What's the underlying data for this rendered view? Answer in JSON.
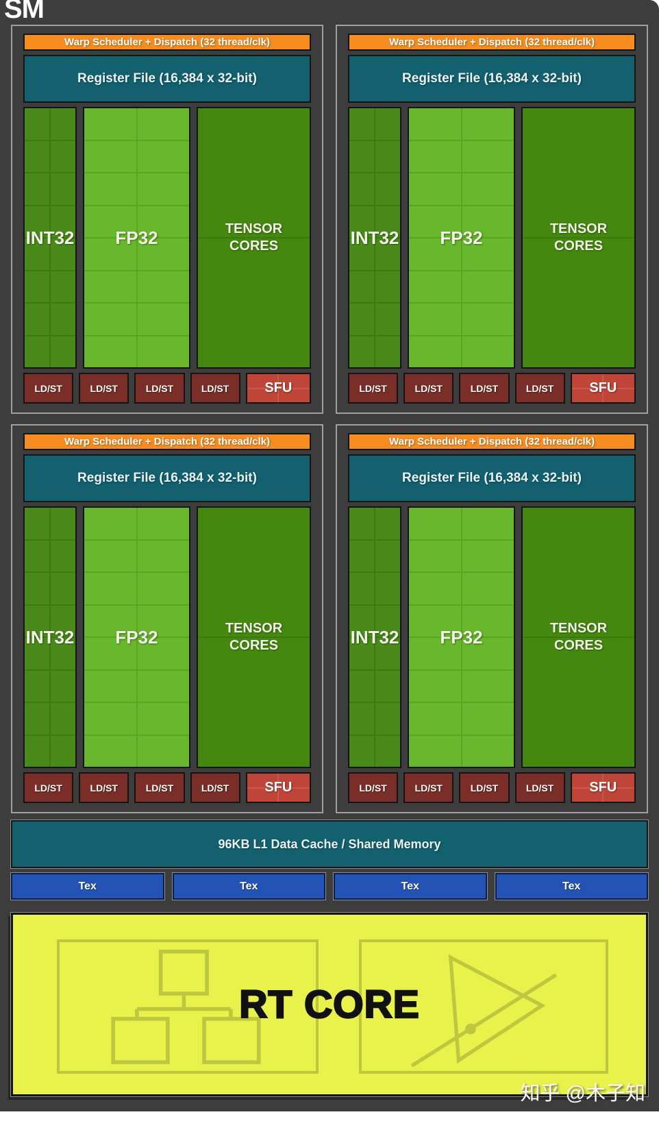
{
  "page": {
    "title": "SM",
    "watermark": "知乎 @木子知"
  },
  "quadrant": {
    "count": 4,
    "warp_label": "Warp Scheduler + Dispatch (32 thread/clk)",
    "register_label": "Register File (16,384 x 32-bit)",
    "cores": {
      "int32": {
        "label": "INT32",
        "cols": 2,
        "rows": 8
      },
      "fp32": {
        "label": "FP32",
        "cols": 2,
        "rows": 8
      },
      "tensor": {
        "label": "TENSOR CORES",
        "cols": 1,
        "rows": 2
      }
    },
    "ldst_label": "LD/ST",
    "ldst_count": 4,
    "sfu": {
      "label": "SFU",
      "cols": 2,
      "rows": 2
    }
  },
  "memory": {
    "l1_label": "96KB L1 Data Cache / Shared Memory",
    "tex_label": "Tex",
    "tex_count": 4
  },
  "rt_core": {
    "label": "RT CORE"
  },
  "colors": {
    "bg": "#3d3d3d",
    "quad_border": "#a0a0a0",
    "block_border": "#141414",
    "light_outline": "#8f8f8f",
    "orange": "#f78c1f",
    "teal": "#13606f",
    "int_fill": "#4a8a1a",
    "int_line": "#3d7a12",
    "fp_fill": "#68b72c",
    "fp_line": "#59a521",
    "tensor_fill": "#45880f",
    "tensor_line": "#3a7a0c",
    "ldst": "#7b2d27",
    "sfu_fill": "#bf4538",
    "sfu_line": "#cc584c",
    "tex": "#2453b6",
    "tex_border": "#0c1e42",
    "rt_bg": "#e9f24b",
    "rt_icon": "#bec83e",
    "rt_text": "#111111"
  }
}
